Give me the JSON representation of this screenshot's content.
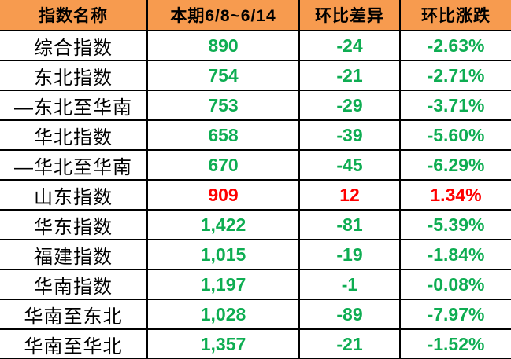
{
  "colors": {
    "header_bg": "#F79B4F",
    "positive_text": "#FF0000",
    "negative_text": "#0EAD52",
    "border": "#000000",
    "header_text": "#000000",
    "name_text": "#000000"
  },
  "chart_data": {
    "type": "table",
    "headers": [
      "指数名称",
      "本期6/8~6/14",
      "环比差异",
      "环比涨跌"
    ],
    "rows": [
      {
        "name": "综合指数",
        "value": "890",
        "diff": "-24",
        "pct": "-2.63%",
        "trend": "down"
      },
      {
        "name": "东北指数",
        "value": "754",
        "diff": "-21",
        "pct": "-2.71%",
        "trend": "down"
      },
      {
        "name": "—东北至华南",
        "value": "753",
        "diff": "-29",
        "pct": "-3.71%",
        "trend": "down"
      },
      {
        "name": "华北指数",
        "value": "658",
        "diff": "-39",
        "pct": "-5.60%",
        "trend": "down"
      },
      {
        "name": "—华北至华南",
        "value": "670",
        "diff": "-45",
        "pct": "-6.29%",
        "trend": "down"
      },
      {
        "name": "山东指数",
        "value": "909",
        "diff": "12",
        "pct": "1.34%",
        "trend": "up"
      },
      {
        "name": "华东指数",
        "value": "1,422",
        "diff": "-81",
        "pct": "-5.39%",
        "trend": "down"
      },
      {
        "name": "福建指数",
        "value": "1,015",
        "diff": "-19",
        "pct": "-1.84%",
        "trend": "down"
      },
      {
        "name": "华南指数",
        "value": "1,197",
        "diff": "-1",
        "pct": "-0.08%",
        "trend": "down"
      },
      {
        "name": "华南至东北",
        "value": "1,028",
        "diff": "-89",
        "pct": "-7.97%",
        "trend": "down"
      },
      {
        "name": "华南至华北",
        "value": "1,357",
        "diff": "-21",
        "pct": "-1.52%",
        "trend": "down"
      }
    ]
  }
}
